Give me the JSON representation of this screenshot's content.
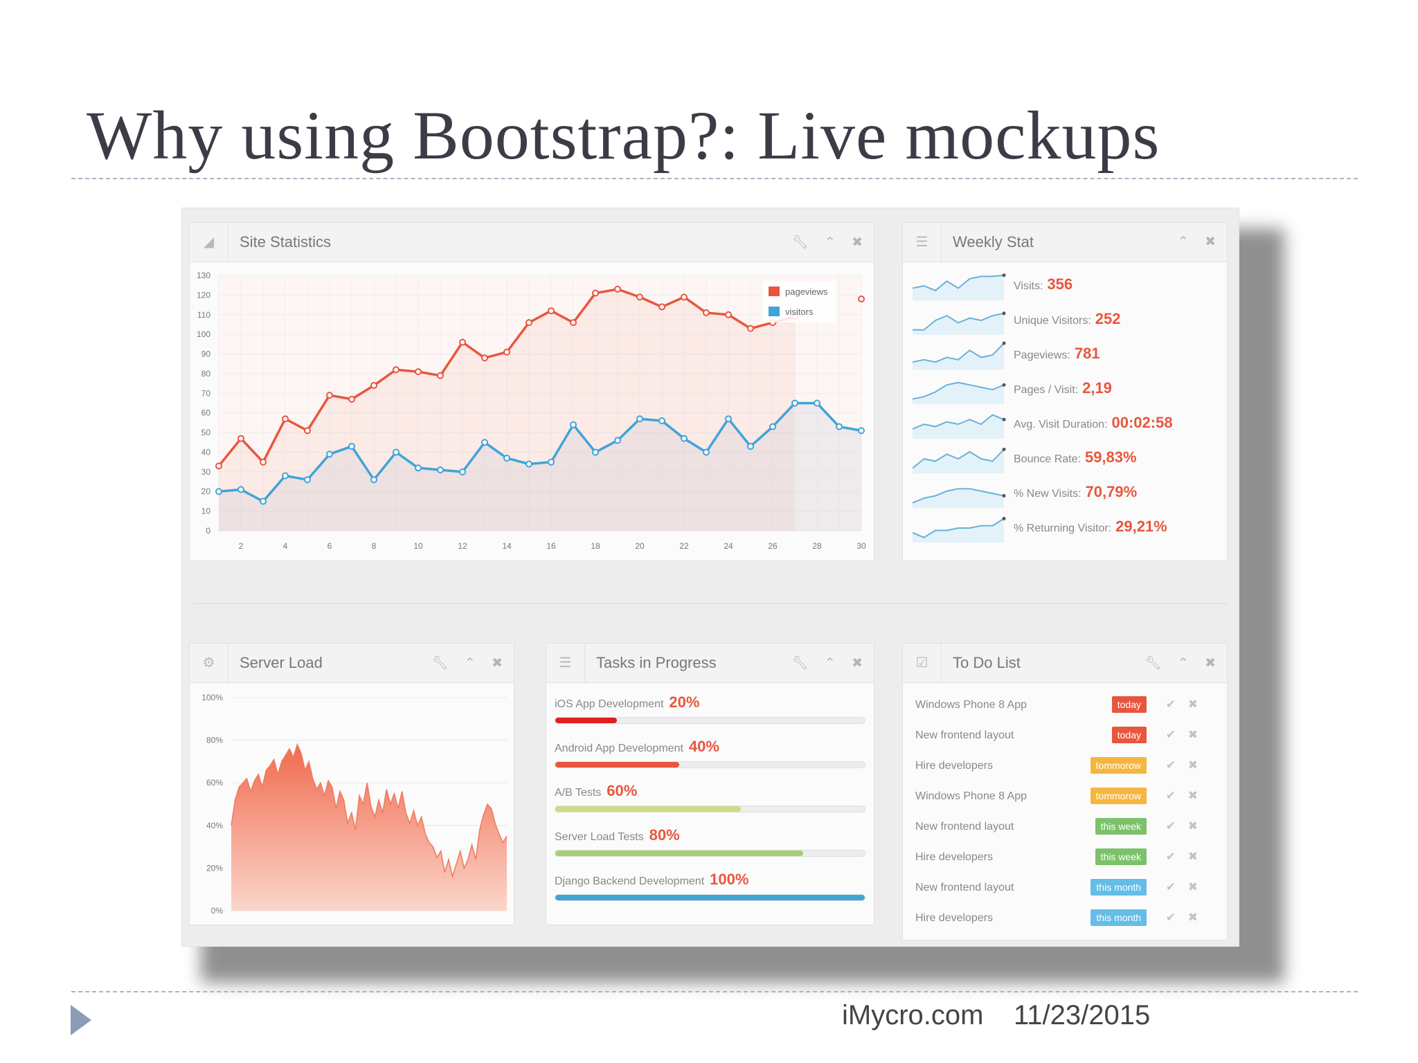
{
  "slide": {
    "title": "Why using Bootstrap?: Live mockups",
    "footer_site": "iMycro.com",
    "footer_date": "11/23/2015"
  },
  "colors": {
    "accent_red": "#e8563e",
    "accent_blue": "#3fa4d8",
    "badge_today": "#e8563e",
    "badge_tomorrow": "#f5b640",
    "badge_week": "#7cc26a",
    "badge_month": "#63bde6"
  },
  "widgets": {
    "site_statistics": {
      "title": "Site Statistics",
      "icon": "bar-chart-icon",
      "tools": [
        "wrench-icon",
        "chevron-up-icon",
        "close-icon"
      ]
    },
    "weekly_stat": {
      "title": "Weekly Stat",
      "icon": "list-icon",
      "tools": [
        "chevron-up-icon",
        "close-icon"
      ],
      "stats": [
        {
          "label": "Visits:",
          "value": "356"
        },
        {
          "label": "Unique Visitors:",
          "value": "252"
        },
        {
          "label": "Pageviews:",
          "value": "781"
        },
        {
          "label": "Pages / Visit:",
          "value": "2,19"
        },
        {
          "label": "Avg. Visit Duration:",
          "value": "00:02:58"
        },
        {
          "label": "Bounce Rate:",
          "value": "59,83%"
        },
        {
          "label": "% New Visits:",
          "value": "70,79%"
        },
        {
          "label": "% Returning Visitor:",
          "value": "29,21%"
        }
      ]
    },
    "server_load": {
      "title": "Server Load",
      "icon": "gauge-icon",
      "tools": [
        "wrench-icon",
        "chevron-up-icon",
        "close-icon"
      ]
    },
    "tasks": {
      "title": "Tasks in Progress",
      "icon": "list-icon",
      "tools": [
        "wrench-icon",
        "chevron-up-icon",
        "close-icon"
      ],
      "items": [
        {
          "label": "iOS App Development",
          "pct_label": "20%",
          "progress": 0.2,
          "color": "#e02020"
        },
        {
          "label": "Android App Development",
          "pct_label": "40%",
          "progress": 0.4,
          "color": "#e8563e"
        },
        {
          "label": "A/B Tests",
          "pct_label": "60%",
          "progress": 0.6,
          "color": "#cddc84"
        },
        {
          "label": "Server Load Tests",
          "pct_label": "80%",
          "progress": 0.8,
          "color": "#a3d174"
        },
        {
          "label": "Django Backend Development",
          "pct_label": "100%",
          "progress": 1.0,
          "color": "#3fa4d8"
        }
      ]
    },
    "todo": {
      "title": "To Do List",
      "icon": "check-square-icon",
      "tools": [
        "wrench-icon",
        "chevron-up-icon",
        "close-icon"
      ],
      "items": [
        {
          "text": "Windows Phone 8 App",
          "badge": "today",
          "badge_color": "#e8563e"
        },
        {
          "text": "New frontend layout",
          "badge": "today",
          "badge_color": "#e8563e"
        },
        {
          "text": "Hire developers",
          "badge": "tommorow",
          "badge_color": "#f5b640"
        },
        {
          "text": "Windows Phone 8 App",
          "badge": "tommorow",
          "badge_color": "#f5b640"
        },
        {
          "text": "New frontend layout",
          "badge": "this week",
          "badge_color": "#7cc26a"
        },
        {
          "text": "Hire developers",
          "badge": "this week",
          "badge_color": "#7cc26a"
        },
        {
          "text": "New frontend layout",
          "badge": "this month",
          "badge_color": "#63bde6"
        },
        {
          "text": "Hire developers",
          "badge": "this month",
          "badge_color": "#63bde6"
        }
      ]
    }
  },
  "chart_data": [
    {
      "type": "line",
      "x": [
        1,
        2,
        3,
        4,
        5,
        6,
        7,
        8,
        9,
        10,
        11,
        12,
        13,
        14,
        15,
        16,
        17,
        18,
        19,
        20,
        21,
        22,
        23,
        24,
        25,
        26,
        27,
        28,
        29,
        30
      ],
      "xticks": [
        2,
        4,
        6,
        8,
        10,
        12,
        14,
        16,
        18,
        20,
        22,
        24,
        26,
        28,
        30
      ],
      "yticks": [
        0,
        10,
        20,
        30,
        40,
        50,
        60,
        70,
        80,
        90,
        100,
        110,
        120,
        130
      ],
      "ylim": [
        0,
        130
      ],
      "grid": true,
      "legend_position": "top-right",
      "series": [
        {
          "name": "pageviews",
          "color": "#e8563e",
          "values": [
            33,
            47,
            35,
            57,
            51,
            69,
            67,
            74,
            82,
            81,
            79,
            96,
            88,
            91,
            106,
            112,
            106,
            121,
            123,
            119,
            114,
            119,
            111,
            110,
            103,
            106,
            109,
            null,
            null,
            118
          ]
        },
        {
          "name": "visitors",
          "color": "#3fa4d8",
          "values": [
            20,
            21,
            15,
            28,
            26,
            39,
            43,
            26,
            40,
            32,
            31,
            30,
            45,
            37,
            34,
            35,
            54,
            40,
            46,
            57,
            56,
            47,
            40,
            57,
            43,
            53,
            65,
            65,
            53,
            51
          ]
        }
      ]
    },
    {
      "type": "area",
      "ylim": [
        0,
        100
      ],
      "yticks": [
        "0%",
        "20%",
        "40%",
        "60%",
        "80%",
        "100%"
      ],
      "grid": true,
      "series": [
        {
          "name": "",
          "color": "#f07a5e",
          "values": [
            40,
            52,
            58,
            60,
            62,
            56,
            61,
            64,
            58,
            66,
            68,
            71,
            64,
            70,
            73,
            76,
            72,
            78,
            74,
            66,
            70,
            62,
            57,
            60,
            54,
            61,
            58,
            48,
            56,
            52,
            41,
            46,
            38,
            54,
            50,
            60,
            49,
            44,
            52,
            46,
            57,
            50,
            55,
            48,
            56,
            46,
            41,
            47,
            40,
            44,
            36,
            32,
            30,
            25,
            28,
            18,
            24,
            16,
            22,
            28,
            20,
            24,
            31,
            24,
            38,
            45,
            50,
            48,
            41,
            36,
            32,
            35
          ]
        }
      ]
    }
  ]
}
